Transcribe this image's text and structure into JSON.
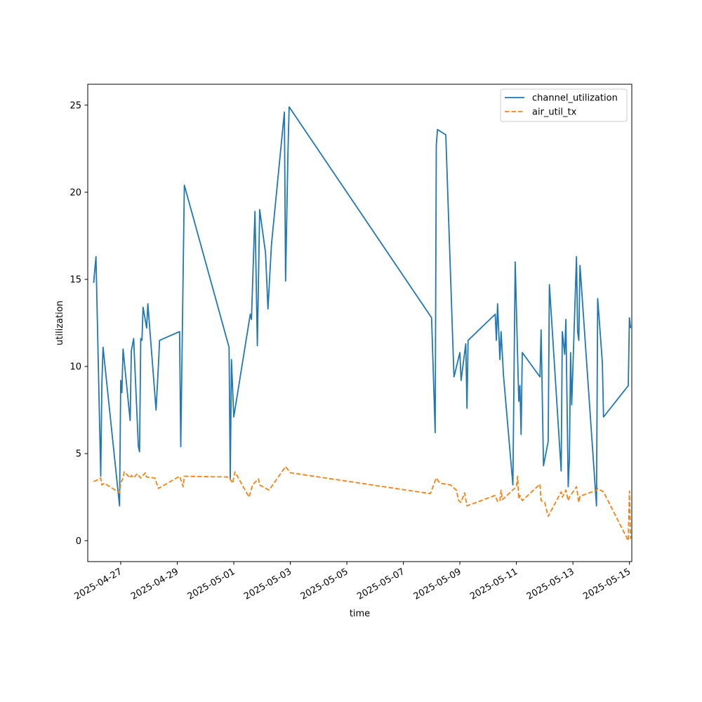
{
  "chart_data": {
    "type": "line",
    "title": "",
    "xlabel": "time",
    "ylabel": "utilization",
    "x_type": "datetime",
    "xlim": [
      "2025-04-25 20:00",
      "2025-05-15 02:00"
    ],
    "ylim": [
      -1.2,
      26.2
    ],
    "x_ticks": [
      "2025-04-27",
      "2025-04-29",
      "2025-05-01",
      "2025-05-03",
      "2025-05-05",
      "2025-05-07",
      "2025-05-09",
      "2025-05-11",
      "2025-05-13",
      "2025-05-15"
    ],
    "y_ticks": [
      0,
      5,
      10,
      15,
      20,
      25
    ],
    "grid": false,
    "legend": "top-right",
    "series": [
      {
        "name": "channel_utilization",
        "color": "#1f77b4",
        "style": "solid",
        "points": [
          [
            "2025-04-26 01:00",
            14.8
          ],
          [
            "2025-04-26 03:00",
            16.3
          ],
          [
            "2025-04-26 07:00",
            3.7
          ],
          [
            "2025-04-26 08:00",
            9.0
          ],
          [
            "2025-04-26 09:00",
            11.1
          ],
          [
            "2025-04-26 23:00",
            2.0
          ],
          [
            "2025-04-27 00:00",
            9.2
          ],
          [
            "2025-04-27 01:00",
            8.5
          ],
          [
            "2025-04-27 02:00",
            11.0
          ],
          [
            "2025-04-27 08:00",
            6.9
          ],
          [
            "2025-04-27 09:00",
            10.9
          ],
          [
            "2025-04-27 11:00",
            11.6
          ],
          [
            "2025-04-27 15:00",
            5.4
          ],
          [
            "2025-04-27 16:00",
            5.1
          ],
          [
            "2025-04-27 17:00",
            11.6
          ],
          [
            "2025-04-27 18:00",
            11.5
          ],
          [
            "2025-04-27 19:00",
            13.4
          ],
          [
            "2025-04-27 22:00",
            12.2
          ],
          [
            "2025-04-27 23:00",
            13.6
          ],
          [
            "2025-04-28 06:00",
            7.5
          ],
          [
            "2025-04-28 08:00",
            10.0
          ],
          [
            "2025-04-28 09:00",
            11.5
          ],
          [
            "2025-04-29 02:00",
            12.0
          ],
          [
            "2025-04-29 03:00",
            5.4
          ],
          [
            "2025-04-29 06:00",
            20.4
          ],
          [
            "2025-04-30 20:00",
            11.1
          ],
          [
            "2025-04-30 21:00",
            3.5
          ],
          [
            "2025-04-30 22:00",
            10.4
          ],
          [
            "2025-05-01 00:00",
            7.1
          ],
          [
            "2025-05-01 14:00",
            13.0
          ],
          [
            "2025-05-01 15:00",
            12.7
          ],
          [
            "2025-05-01 18:00",
            18.9
          ],
          [
            "2025-05-01 20:00",
            11.2
          ],
          [
            "2025-05-01 22:00",
            19.0
          ],
          [
            "2025-05-02 03:00",
            16.5
          ],
          [
            "2025-05-02 05:00",
            13.3
          ],
          [
            "2025-05-02 08:00",
            17.0
          ],
          [
            "2025-05-02 19:00",
            24.6
          ],
          [
            "2025-05-02 20:00",
            14.9
          ],
          [
            "2025-05-02 22:00",
            22.3
          ],
          [
            "2025-05-02 23:00",
            24.9
          ],
          [
            "2025-05-08 00:00",
            12.8
          ],
          [
            "2025-05-08 03:00",
            6.2
          ],
          [
            "2025-05-08 04:00",
            22.7
          ],
          [
            "2025-05-08 05:00",
            23.6
          ],
          [
            "2025-05-08 12:00",
            23.3
          ],
          [
            "2025-05-08 19:00",
            9.4
          ],
          [
            "2025-05-09 00:00",
            10.8
          ],
          [
            "2025-05-09 01:00",
            9.2
          ],
          [
            "2025-05-09 05:00",
            11.3
          ],
          [
            "2025-05-09 06:00",
            7.6
          ],
          [
            "2025-05-09 07:00",
            11.5
          ],
          [
            "2025-05-10 06:00",
            13.0
          ],
          [
            "2025-05-10 07:00",
            11.5
          ],
          [
            "2025-05-10 08:00",
            13.6
          ],
          [
            "2025-05-10 10:00",
            10.4
          ],
          [
            "2025-05-10 11:00",
            12.0
          ],
          [
            "2025-05-10 13:00",
            9.5
          ],
          [
            "2025-05-10 21:00",
            3.2
          ],
          [
            "2025-05-10 23:00",
            16.0
          ],
          [
            "2025-05-11 02:00",
            8.0
          ],
          [
            "2025-05-11 03:00",
            8.9
          ],
          [
            "2025-05-11 04:00",
            6.1
          ],
          [
            "2025-05-11 05:00",
            10.8
          ],
          [
            "2025-05-11 20:00",
            9.4
          ],
          [
            "2025-05-11 21:00",
            12.1
          ],
          [
            "2025-05-11 23:00",
            4.3
          ],
          [
            "2025-05-12 03:00",
            5.7
          ],
          [
            "2025-05-12 04:00",
            14.7
          ],
          [
            "2025-05-12 14:00",
            4.0
          ],
          [
            "2025-05-12 15:00",
            12.0
          ],
          [
            "2025-05-12 17:00",
            10.7
          ],
          [
            "2025-05-12 18:00",
            12.7
          ],
          [
            "2025-05-12 20:00",
            3.1
          ],
          [
            "2025-05-12 21:00",
            4.7
          ],
          [
            "2025-05-12 22:00",
            10.8
          ],
          [
            "2025-05-12 23:00",
            7.8
          ],
          [
            "2025-05-13 03:00",
            16.3
          ],
          [
            "2025-05-13 04:00",
            12.0
          ],
          [
            "2025-05-13 05:00",
            11.5
          ],
          [
            "2025-05-13 06:00",
            15.8
          ],
          [
            "2025-05-13 20:00",
            2.0
          ],
          [
            "2025-05-13 21:00",
            13.9
          ],
          [
            "2025-05-14 01:00",
            10.2
          ],
          [
            "2025-05-14 02:00",
            7.1
          ],
          [
            "2025-05-14 23:00",
            8.9
          ],
          [
            "2025-05-15 00:00",
            12.8
          ],
          [
            "2025-05-15 01:00",
            12.2
          ]
        ]
      },
      {
        "name": "air_util_tx",
        "color": "#ff7f0e",
        "style": "dashed",
        "points": [
          [
            "2025-04-26 01:00",
            3.4
          ],
          [
            "2025-04-26 03:00",
            3.45
          ],
          [
            "2025-04-26 07:00",
            3.6
          ],
          [
            "2025-04-26 08:00",
            3.2
          ],
          [
            "2025-04-26 10:00",
            3.3
          ],
          [
            "2025-04-26 23:00",
            2.75
          ],
          [
            "2025-04-27 00:00",
            3.3
          ],
          [
            "2025-04-27 02:00",
            3.6
          ],
          [
            "2025-04-27 03:00",
            3.95
          ],
          [
            "2025-04-27 08:00",
            3.6
          ],
          [
            "2025-04-27 09:00",
            3.75
          ],
          [
            "2025-04-27 11:00",
            3.6
          ],
          [
            "2025-04-27 14:00",
            3.85
          ],
          [
            "2025-04-27 17:00",
            3.6
          ],
          [
            "2025-04-27 21:00",
            3.9
          ],
          [
            "2025-04-27 22:00",
            3.65
          ],
          [
            "2025-04-28 05:00",
            3.6
          ],
          [
            "2025-04-28 08:00",
            3.0
          ],
          [
            "2025-04-29 02:00",
            3.7
          ],
          [
            "2025-04-29 05:00",
            3.1
          ],
          [
            "2025-04-29 06:00",
            3.7
          ],
          [
            "2025-04-30 20:00",
            3.65
          ],
          [
            "2025-04-30 23:00",
            3.3
          ],
          [
            "2025-05-01 01:00",
            3.95
          ],
          [
            "2025-05-01 13:00",
            2.5
          ],
          [
            "2025-05-01 16:00",
            3.2
          ],
          [
            "2025-05-01 21:00",
            3.55
          ],
          [
            "2025-05-01 22:00",
            3.2
          ],
          [
            "2025-05-02 06:00",
            2.9
          ],
          [
            "2025-05-02 20:00",
            4.25
          ],
          [
            "2025-05-03 00:00",
            3.9
          ],
          [
            "2025-05-07 23:00",
            2.7
          ],
          [
            "2025-05-08 04:00",
            3.6
          ],
          [
            "2025-05-08 07:00",
            3.3
          ],
          [
            "2025-05-08 16:00",
            3.2
          ],
          [
            "2025-05-08 21:00",
            2.9
          ],
          [
            "2025-05-08 23:00",
            2.3
          ],
          [
            "2025-05-09 01:00",
            2.2
          ],
          [
            "2025-05-09 04:00",
            2.75
          ],
          [
            "2025-05-09 06:00",
            2.0
          ],
          [
            "2025-05-10 06:00",
            2.6
          ],
          [
            "2025-05-10 08:00",
            2.25
          ],
          [
            "2025-05-10 10:00",
            2.3
          ],
          [
            "2025-05-10 11:00",
            2.9
          ],
          [
            "2025-05-10 12:00",
            2.35
          ],
          [
            "2025-05-11 00:00",
            3.1
          ],
          [
            "2025-05-11 01:00",
            3.7
          ],
          [
            "2025-05-11 02:00",
            2.4
          ],
          [
            "2025-05-11 03:00",
            2.6
          ],
          [
            "2025-05-11 05:00",
            2.3
          ],
          [
            "2025-05-11 20:00",
            3.25
          ],
          [
            "2025-05-11 21:00",
            2.3
          ],
          [
            "2025-05-12 00:00",
            2.2
          ],
          [
            "2025-05-12 03:00",
            1.4
          ],
          [
            "2025-05-12 14:00",
            2.8
          ],
          [
            "2025-05-12 15:00",
            2.5
          ],
          [
            "2025-05-12 18:00",
            2.9
          ],
          [
            "2025-05-12 20:00",
            2.3
          ],
          [
            "2025-05-12 21:00",
            2.5
          ],
          [
            "2025-05-13 03:00",
            3.1
          ],
          [
            "2025-05-13 05:00",
            2.2
          ],
          [
            "2025-05-13 06:00",
            2.55
          ],
          [
            "2025-05-13 20:00",
            2.9
          ],
          [
            "2025-05-13 21:00",
            3.0
          ],
          [
            "2025-05-14 02:00",
            2.8
          ],
          [
            "2025-05-14 23:00",
            0.0
          ],
          [
            "2025-05-15 00:00",
            2.85
          ],
          [
            "2025-05-15 01:00",
            0.1
          ]
        ]
      }
    ]
  }
}
